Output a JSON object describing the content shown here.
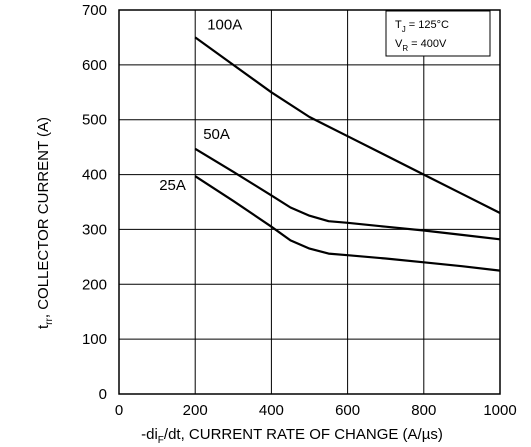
{
  "chart_data": {
    "type": "line",
    "xlabel": {
      "prefix": "-di",
      "sub": "F",
      "suffix": "/dt, CURRENT RATE OF CHANGE (A/µs)"
    },
    "ylabel": {
      "prefix": "t",
      "sub": "rr",
      "suffix": ", COLLECTOR CURRENT (A)"
    },
    "xlim": [
      0,
      1000
    ],
    "ylim": [
      0,
      700
    ],
    "x_ticks": [
      0,
      200,
      400,
      600,
      800,
      1000
    ],
    "y_ticks": [
      0,
      100,
      200,
      300,
      400,
      500,
      600,
      700
    ],
    "grid": true,
    "conditions": [
      {
        "prefix": "T",
        "sub": "J",
        "suffix": " = 125°C"
      },
      {
        "prefix": "V",
        "sub": "R",
        "suffix": " = 400V"
      }
    ],
    "series": [
      {
        "name": "100A",
        "points": [
          [
            200,
            650
          ],
          [
            300,
            600
          ],
          [
            400,
            550
          ],
          [
            500,
            505
          ],
          [
            600,
            470
          ],
          [
            700,
            435
          ],
          [
            800,
            400
          ],
          [
            900,
            365
          ],
          [
            1000,
            330
          ]
        ]
      },
      {
        "name": "50A",
        "points": [
          [
            200,
            447
          ],
          [
            300,
            405
          ],
          [
            400,
            362
          ],
          [
            450,
            340
          ],
          [
            500,
            325
          ],
          [
            550,
            315
          ],
          [
            600,
            312
          ],
          [
            700,
            305
          ],
          [
            800,
            298
          ],
          [
            900,
            290
          ],
          [
            1000,
            282
          ]
        ]
      },
      {
        "name": "25A",
        "points": [
          [
            200,
            397
          ],
          [
            300,
            352
          ],
          [
            400,
            305
          ],
          [
            450,
            280
          ],
          [
            500,
            265
          ],
          [
            550,
            256
          ],
          [
            600,
            253
          ],
          [
            700,
            247
          ],
          [
            800,
            240
          ],
          [
            900,
            233
          ],
          [
            1000,
            225
          ]
        ]
      }
    ]
  }
}
